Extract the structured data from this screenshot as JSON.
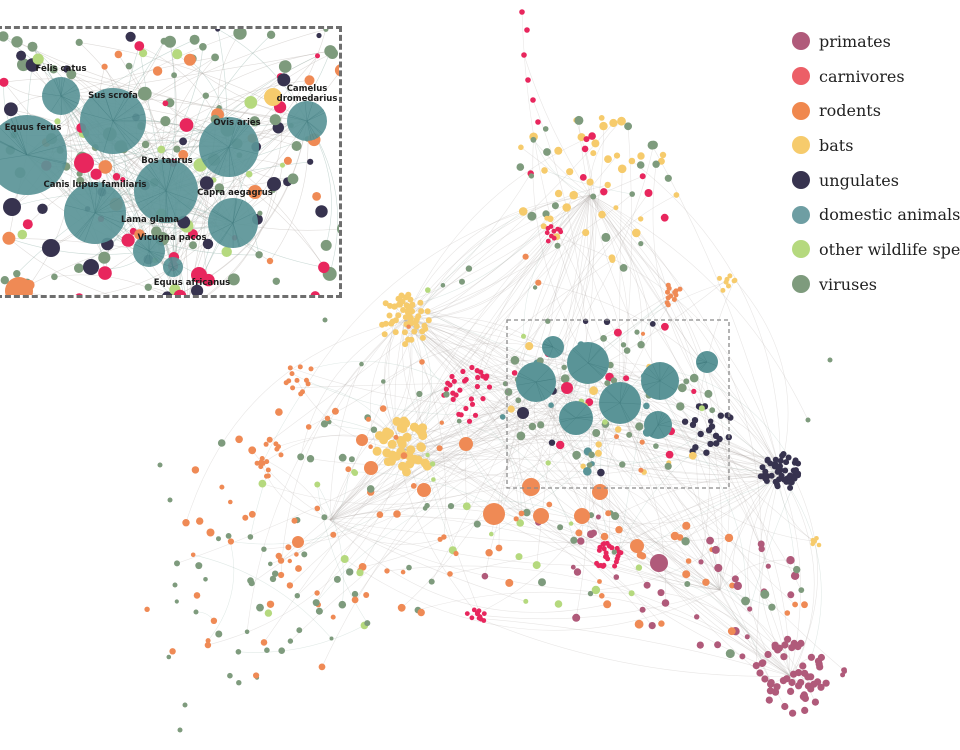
{
  "legend": {
    "items": [
      {
        "label": "primates",
        "color": "#b05a7a",
        "icon": "circle-icon"
      },
      {
        "label": "carnivores",
        "color": "#ec5f67",
        "icon": "circle-icon"
      },
      {
        "label": "rodents",
        "color": "#f0884e",
        "icon": "circle-icon"
      },
      {
        "label": "bats",
        "color": "#f6cb6c",
        "icon": "circle-icon"
      },
      {
        "label": "ungulates",
        "color": "#37334f",
        "icon": "circle-icon"
      },
      {
        "label": "domestic animals",
        "color": "#6e9ea3",
        "icon": "circle-icon"
      },
      {
        "label": "other wildlife spec",
        "color": "#b5d97e",
        "icon": "circle-icon"
      },
      {
        "label": "viruses",
        "color": "#7e9b7d",
        "icon": "circle-icon"
      }
    ]
  },
  "inset": {
    "species": [
      "Felis catus",
      "Sus scrofa",
      "Camelus dromedarius",
      "Equus ferus",
      "Ovis aries",
      "Bos taurus",
      "Canis lupus familiaris",
      "Capra aegagrus",
      "Lama glama",
      "Vicugna pacos",
      "Equus africanus"
    ]
  },
  "colors": {
    "edge": "#b9b2ad",
    "inset_border": "#6e6e6e",
    "highlight_box": "#8a8a8a",
    "domestic_node": "#5a9497",
    "accent_red": "#e8265d"
  }
}
